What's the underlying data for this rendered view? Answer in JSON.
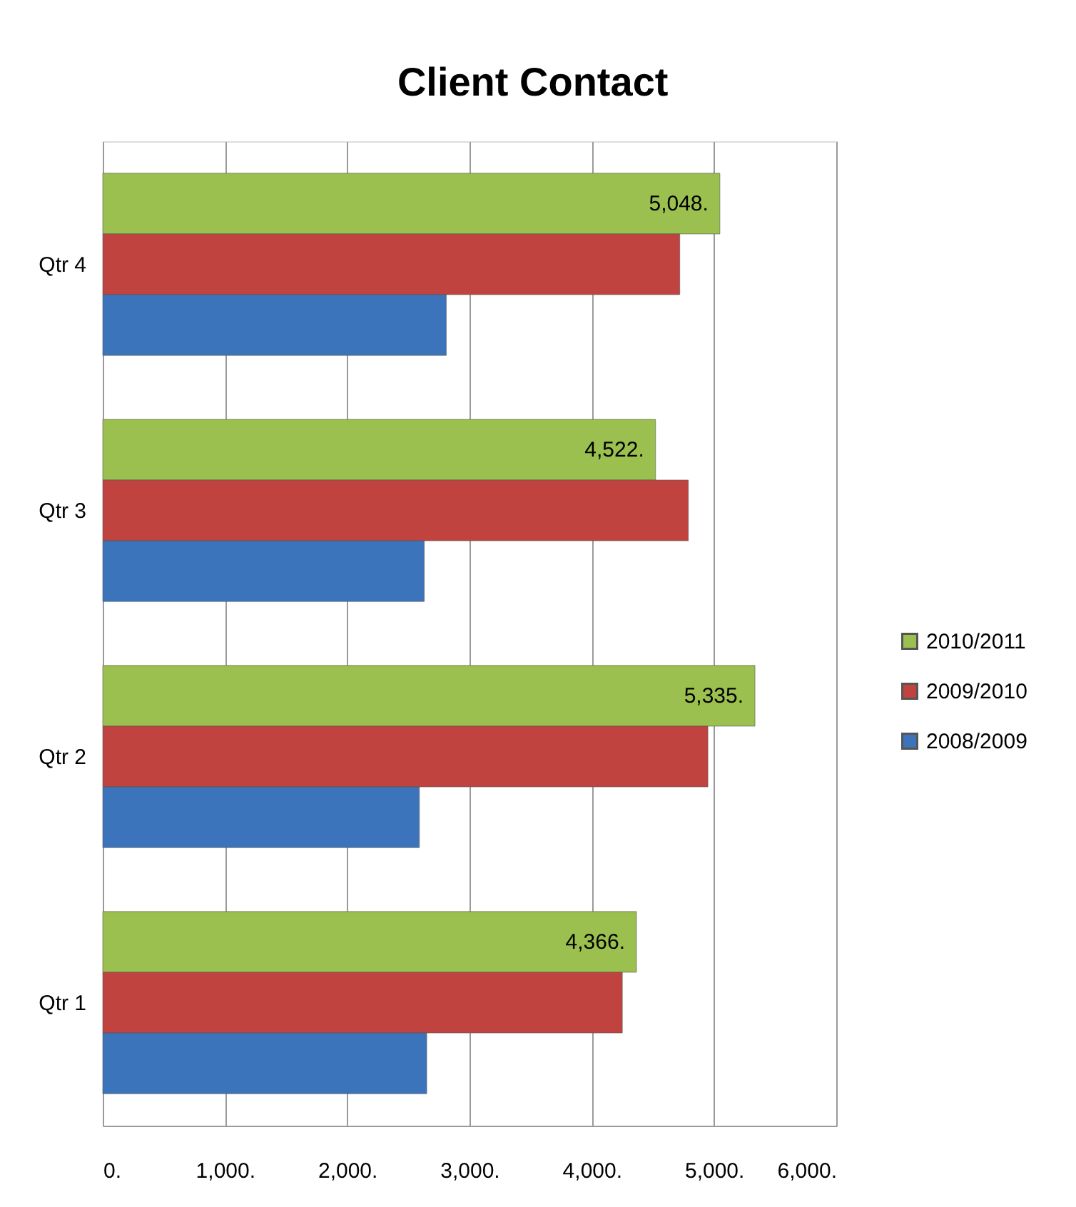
{
  "chart_data": {
    "type": "bar",
    "orientation": "horizontal",
    "title": "Client Contact",
    "categories": [
      "Qtr 4",
      "Qtr 3",
      "Qtr 2",
      "Qtr 1"
    ],
    "series": [
      {
        "name": "2010/2011",
        "color": "#9bc04f",
        "values": [
          5048,
          4522,
          5335,
          4366
        ],
        "value_labels": [
          "5,048.",
          "4,522.",
          "5,335.",
          "4,366."
        ]
      },
      {
        "name": "2009/2010",
        "color": "#c0433f",
        "values": [
          4720,
          4790,
          4950,
          4250
        ]
      },
      {
        "name": "2008/2009",
        "color": "#3c74bc",
        "values": [
          2810,
          2630,
          2590,
          2650
        ]
      }
    ],
    "xlim": [
      0,
      6000
    ],
    "xticks": [
      {
        "value": 0,
        "label": "0."
      },
      {
        "value": 1000,
        "label": "1,000."
      },
      {
        "value": 2000,
        "label": "2,000."
      },
      {
        "value": 3000,
        "label": "3,000."
      },
      {
        "value": 4000,
        "label": "4,000."
      },
      {
        "value": 5000,
        "label": "5,000."
      },
      {
        "value": 6000,
        "label": "6,000."
      }
    ],
    "grid": "x",
    "legend": "right"
  }
}
